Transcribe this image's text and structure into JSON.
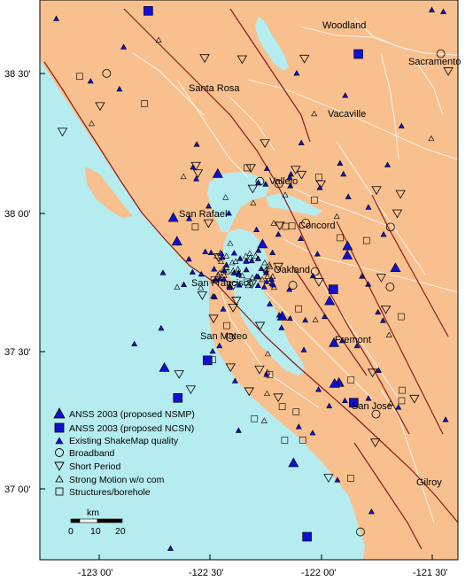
{
  "colors": {
    "land": "#f8c08e",
    "water": "#b4ecf0",
    "roads": "#ffffff",
    "faults": "#8b1a1a",
    "anss": "#1010d0",
    "symbol_stroke": "#000000"
  },
  "axes": {
    "y_ticks": [
      "38 30'",
      "38 00'",
      "37 30'",
      "37 00'"
    ],
    "x_ticks": [
      "-123 00'",
      "-122 30'",
      "-122 00'",
      "-121 30'"
    ]
  },
  "cities": [
    "Woodland",
    "Sacramento",
    "Santa Rosa",
    "Vacaville",
    "Vallejo",
    "San Rafael",
    "Concord",
    "Oakland",
    "San Francisco",
    "San Mateo",
    "Fremont",
    "San Jose",
    "Gilroy"
  ],
  "legend": {
    "items": [
      {
        "label": "ANSS 2003 (proposed NSMP)",
        "icon": "large-filled-triangle"
      },
      {
        "label": "ANSS 2003 (proposed NCSN)",
        "icon": "large-filled-square"
      },
      {
        "label": "Existing ShakeMap quality",
        "icon": "small-filled-triangle"
      },
      {
        "label": "Broadband",
        "icon": "open-circle"
      },
      {
        "label": "Short Period",
        "icon": "open-inverted-triangle"
      },
      {
        "label": "Strong Motion w/o com",
        "icon": "small-open-triangle"
      },
      {
        "label": "Structures/borehole",
        "icon": "open-square"
      }
    ]
  },
  "scale_bar": {
    "unit": "km",
    "labels": [
      "0",
      "10",
      "20"
    ]
  }
}
